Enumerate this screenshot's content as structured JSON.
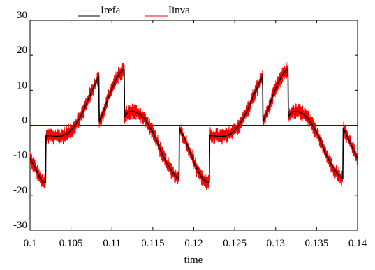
{
  "chart_data": {
    "type": "line",
    "title": "",
    "xlabel": "time",
    "ylabel": "",
    "xlim": [
      0.1,
      0.14
    ],
    "ylim": [
      -30,
      30
    ],
    "x_ticks": [
      0.1,
      0.105,
      0.11,
      0.115,
      0.12,
      0.125,
      0.13,
      0.135,
      0.14
    ],
    "x_tick_labels": [
      "0.1",
      "0.105",
      "0.11",
      "0.115",
      "0.12",
      "0.125",
      "0.13",
      "0.135",
      "0.14"
    ],
    "y_ticks": [
      -30,
      -20,
      -10,
      0,
      10,
      20,
      30
    ],
    "y_tick_labels": [
      "-30",
      "-20",
      "-10",
      "0",
      "10",
      "20",
      "30"
    ],
    "grid": false,
    "legend_position": "top",
    "series": [
      {
        "name": "Irefa",
        "color": "#000000",
        "points": [
          [
            0.1,
            -9.5
          ],
          [
            0.1005,
            -11.5
          ],
          [
            0.101,
            -14.0
          ],
          [
            0.1015,
            -16.2
          ],
          [
            0.1019,
            -16.5
          ],
          [
            0.10195,
            -3.0
          ],
          [
            0.1025,
            -3.0
          ],
          [
            0.103,
            -3.2
          ],
          [
            0.1035,
            -3.2
          ],
          [
            0.104,
            -3.0
          ],
          [
            0.1045,
            -2.5
          ],
          [
            0.105,
            -1.5
          ],
          [
            0.1055,
            0.0
          ],
          [
            0.106,
            1.8
          ],
          [
            0.1065,
            4.0
          ],
          [
            0.107,
            6.8
          ],
          [
            0.1075,
            9.5
          ],
          [
            0.108,
            12.0
          ],
          [
            0.1084,
            14.0
          ],
          [
            0.10845,
            1.0
          ],
          [
            0.109,
            4.0
          ],
          [
            0.1095,
            7.5
          ],
          [
            0.11,
            10.5
          ],
          [
            0.1105,
            13.0
          ],
          [
            0.111,
            15.0
          ],
          [
            0.1115,
            16.0
          ],
          [
            0.11155,
            2.5
          ],
          [
            0.112,
            3.8
          ],
          [
            0.1125,
            4.0
          ],
          [
            0.113,
            3.7
          ],
          [
            0.1135,
            3.0
          ],
          [
            0.114,
            1.8
          ],
          [
            0.1145,
            0.0
          ],
          [
            0.115,
            -2.0
          ],
          [
            0.1155,
            -4.5
          ],
          [
            0.116,
            -7.5
          ],
          [
            0.1165,
            -10.0
          ],
          [
            0.117,
            -12.0
          ],
          [
            0.1175,
            -13.8
          ],
          [
            0.118,
            -15.0
          ],
          [
            0.1182,
            -15.2
          ],
          [
            0.11825,
            -1.0
          ],
          [
            0.1185,
            -2.0
          ],
          [
            0.119,
            -4.5
          ],
          [
            0.1195,
            -7.5
          ],
          [
            0.12,
            -10.5
          ],
          [
            0.1205,
            -13.0
          ],
          [
            0.121,
            -15.0
          ],
          [
            0.1215,
            -16.2
          ],
          [
            0.1219,
            -16.5
          ],
          [
            0.12195,
            -3.0
          ],
          [
            0.1225,
            -3.0
          ],
          [
            0.123,
            -3.2
          ],
          [
            0.1235,
            -3.2
          ],
          [
            0.124,
            -3.0
          ],
          [
            0.1245,
            -2.5
          ],
          [
            0.125,
            -1.5
          ],
          [
            0.1255,
            0.0
          ],
          [
            0.126,
            1.8
          ],
          [
            0.1265,
            4.0
          ],
          [
            0.127,
            6.8
          ],
          [
            0.1275,
            9.5
          ],
          [
            0.128,
            12.0
          ],
          [
            0.1284,
            14.0
          ],
          [
            0.12845,
            1.0
          ],
          [
            0.129,
            4.0
          ],
          [
            0.1295,
            7.5
          ],
          [
            0.13,
            10.5
          ],
          [
            0.1305,
            13.0
          ],
          [
            0.131,
            15.0
          ],
          [
            0.1315,
            16.0
          ],
          [
            0.13155,
            2.5
          ],
          [
            0.132,
            3.8
          ],
          [
            0.1325,
            4.0
          ],
          [
            0.133,
            3.7
          ],
          [
            0.1335,
            3.0
          ],
          [
            0.134,
            1.8
          ],
          [
            0.1345,
            0.0
          ],
          [
            0.135,
            -2.0
          ],
          [
            0.1355,
            -4.5
          ],
          [
            0.136,
            -7.5
          ],
          [
            0.1365,
            -10.0
          ],
          [
            0.137,
            -12.0
          ],
          [
            0.1375,
            -13.8
          ],
          [
            0.138,
            -15.0
          ],
          [
            0.1382,
            -15.2
          ],
          [
            0.13825,
            -1.0
          ],
          [
            0.1385,
            -2.0
          ],
          [
            0.139,
            -4.5
          ],
          [
            0.1395,
            -7.0
          ],
          [
            0.14,
            -9.5
          ]
        ]
      },
      {
        "name": "Iinva",
        "color": "#ff0000",
        "ripple_amplitude": 1.6,
        "points": [
          [
            0.1,
            -9.5
          ],
          [
            0.1005,
            -11.5
          ],
          [
            0.101,
            -14.0
          ],
          [
            0.1015,
            -16.2
          ],
          [
            0.1019,
            -16.5
          ],
          [
            0.10195,
            -3.0
          ],
          [
            0.1025,
            -3.0
          ],
          [
            0.103,
            -3.2
          ],
          [
            0.1035,
            -3.2
          ],
          [
            0.104,
            -3.0
          ],
          [
            0.1045,
            -2.5
          ],
          [
            0.105,
            -1.5
          ],
          [
            0.1055,
            0.0
          ],
          [
            0.106,
            1.8
          ],
          [
            0.1065,
            4.0
          ],
          [
            0.107,
            6.8
          ],
          [
            0.1075,
            9.5
          ],
          [
            0.108,
            12.0
          ],
          [
            0.1084,
            14.0
          ],
          [
            0.10845,
            1.0
          ],
          [
            0.109,
            4.0
          ],
          [
            0.1095,
            7.5
          ],
          [
            0.11,
            10.5
          ],
          [
            0.1105,
            13.0
          ],
          [
            0.111,
            15.0
          ],
          [
            0.1115,
            16.0
          ],
          [
            0.11155,
            2.5
          ],
          [
            0.112,
            3.8
          ],
          [
            0.1125,
            4.0
          ],
          [
            0.113,
            3.7
          ],
          [
            0.1135,
            3.0
          ],
          [
            0.114,
            1.8
          ],
          [
            0.1145,
            0.0
          ],
          [
            0.115,
            -2.0
          ],
          [
            0.1155,
            -4.5
          ],
          [
            0.116,
            -7.5
          ],
          [
            0.1165,
            -10.0
          ],
          [
            0.117,
            -12.0
          ],
          [
            0.1175,
            -13.8
          ],
          [
            0.118,
            -15.0
          ],
          [
            0.1182,
            -15.2
          ],
          [
            0.11825,
            -1.0
          ],
          [
            0.1185,
            -2.0
          ],
          [
            0.119,
            -4.5
          ],
          [
            0.1195,
            -7.5
          ],
          [
            0.12,
            -10.5
          ],
          [
            0.1205,
            -13.0
          ],
          [
            0.121,
            -15.0
          ],
          [
            0.1215,
            -16.2
          ],
          [
            0.1219,
            -16.5
          ],
          [
            0.12195,
            -3.0
          ],
          [
            0.1225,
            -3.0
          ],
          [
            0.123,
            -3.2
          ],
          [
            0.1235,
            -3.2
          ],
          [
            0.124,
            -3.0
          ],
          [
            0.1245,
            -2.5
          ],
          [
            0.125,
            -1.5
          ],
          [
            0.1255,
            0.0
          ],
          [
            0.126,
            1.8
          ],
          [
            0.1265,
            4.0
          ],
          [
            0.127,
            6.8
          ],
          [
            0.1275,
            9.5
          ],
          [
            0.128,
            12.0
          ],
          [
            0.1284,
            14.0
          ],
          [
            0.12845,
            1.0
          ],
          [
            0.129,
            4.0
          ],
          [
            0.1295,
            7.5
          ],
          [
            0.13,
            10.5
          ],
          [
            0.1305,
            13.0
          ],
          [
            0.131,
            15.0
          ],
          [
            0.1315,
            16.0
          ],
          [
            0.13155,
            2.5
          ],
          [
            0.132,
            3.8
          ],
          [
            0.1325,
            4.0
          ],
          [
            0.133,
            3.7
          ],
          [
            0.1335,
            3.0
          ],
          [
            0.134,
            1.8
          ],
          [
            0.1345,
            0.0
          ],
          [
            0.135,
            -2.0
          ],
          [
            0.1355,
            -4.5
          ],
          [
            0.136,
            -7.5
          ],
          [
            0.1365,
            -10.0
          ],
          [
            0.137,
            -12.0
          ],
          [
            0.1375,
            -13.8
          ],
          [
            0.138,
            -15.0
          ],
          [
            0.1382,
            -15.2
          ],
          [
            0.13825,
            -1.0
          ],
          [
            0.1385,
            -2.0
          ],
          [
            0.139,
            -4.5
          ],
          [
            0.1395,
            -7.0
          ],
          [
            0.14,
            -9.5
          ]
        ]
      },
      {
        "name": "",
        "color": "#0000ff",
        "points": [
          [
            0.1,
            0
          ],
          [
            0.14,
            0
          ]
        ]
      }
    ]
  },
  "legend": {
    "items": [
      {
        "label": "Irefa",
        "color": "#000000"
      },
      {
        "label": "Iinva",
        "color": "#ff0000"
      }
    ]
  },
  "axes": {
    "xlabel": "time"
  }
}
